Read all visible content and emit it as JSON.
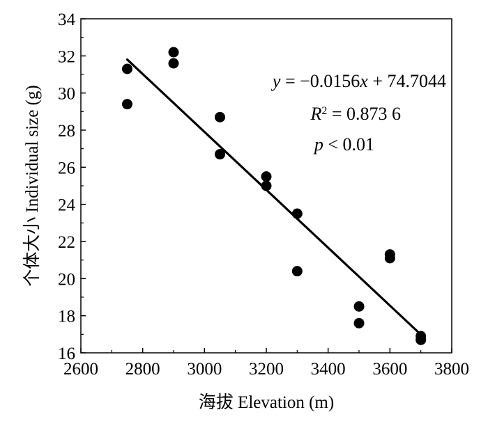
{
  "chart_data": {
    "type": "scatter",
    "title": "",
    "xlabel": "海拔 Elevation (m)",
    "ylabel": "个体大小 Individual size (g)",
    "xlim": [
      2600,
      3800
    ],
    "ylim": [
      16,
      34
    ],
    "xticks": [
      "2600",
      "2800",
      "3000",
      "3200",
      "3400",
      "3600",
      "3800"
    ],
    "yticks": [
      "16",
      "18",
      "20",
      "22",
      "24",
      "26",
      "28",
      "30",
      "32",
      "34"
    ],
    "grid": false,
    "legend": "none",
    "colors": {
      "points": "#000000",
      "line": "#000000"
    },
    "points": [
      {
        "x": 2750,
        "y": 31.3
      },
      {
        "x": 2750,
        "y": 29.4
      },
      {
        "x": 2900,
        "y": 32.2
      },
      {
        "x": 2900,
        "y": 31.6
      },
      {
        "x": 3050,
        "y": 28.7
      },
      {
        "x": 3050,
        "y": 26.7
      },
      {
        "x": 3200,
        "y": 25.5
      },
      {
        "x": 3200,
        "y": 25.0
      },
      {
        "x": 3300,
        "y": 23.5
      },
      {
        "x": 3300,
        "y": 20.4
      },
      {
        "x": 3500,
        "y": 18.5
      },
      {
        "x": 3500,
        "y": 17.6
      },
      {
        "x": 3600,
        "y": 21.3
      },
      {
        "x": 3600,
        "y": 21.1
      },
      {
        "x": 3700,
        "y": 16.9
      },
      {
        "x": 3700,
        "y": 16.7
      }
    ],
    "fit": {
      "slope": -0.0156,
      "intercept": 74.7044,
      "x_range": [
        2750,
        3700
      ]
    },
    "annotations": {
      "equation": {
        "y_var": "y",
        "rhs_lead": " = −0.0156",
        "x_var": "x",
        "rhs_tail": " + 74.7044"
      },
      "r2": {
        "label": "R",
        "sup": "2",
        "value": " = 0.873 6"
      },
      "p": {
        "label": "p",
        "value": " < 0.01"
      }
    }
  }
}
